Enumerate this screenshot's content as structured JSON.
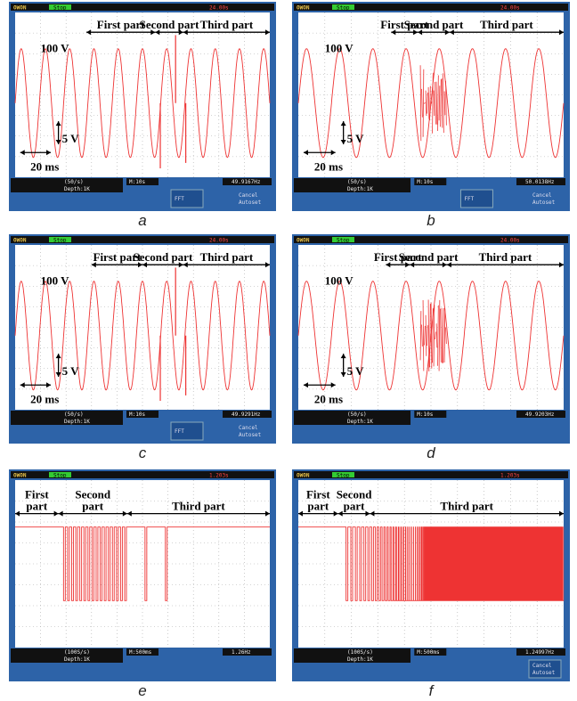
{
  "panels": [
    {
      "caption": "a",
      "first": "First part",
      "second": "Second part",
      "third": "Third part",
      "voltage": "100 V",
      "vdiv": "5 V",
      "time": "20 ms",
      "scope": {
        "brand": "OWON",
        "status": "Stop",
        "clock": "24.00s",
        "freq": "49.9167Hz",
        "timebase": "M:10s",
        "rate": "(50/s)",
        "depth": "Depth:1K",
        "menu": [
          "FFT",
          "Cancel",
          "Autoset"
        ]
      }
    },
    {
      "caption": "b",
      "first": "First part",
      "second": "Second part",
      "third": "Third part",
      "voltage": "100 V",
      "vdiv": "5 V",
      "time": "20 ms",
      "scope": {
        "brand": "OWON",
        "status": "Stop",
        "clock": "24.00s",
        "freq": "50.0138Hz",
        "timebase": "M:10s",
        "rate": "(50/s)",
        "depth": "Depth:1K",
        "menu": [
          "FFT",
          "Cancel",
          "Autoset"
        ]
      }
    },
    {
      "caption": "c",
      "first": "First part",
      "second": "Second part",
      "third": "Third part",
      "voltage": "100 V",
      "vdiv": "5 V",
      "time": "20 ms",
      "scope": {
        "brand": "OWON",
        "status": "Stop",
        "clock": "24.00s",
        "freq": "49.9291Hz",
        "timebase": "M:10s",
        "rate": "(50/s)",
        "depth": "Depth:1K",
        "menu": [
          "FFT",
          "Cancel",
          "Autoset"
        ]
      }
    },
    {
      "caption": "d",
      "first": "First part",
      "second": "Second part",
      "third": "Third part",
      "voltage": "100 V",
      "vdiv": "5 V",
      "time": "20 ms",
      "scope": {
        "brand": "OWON",
        "status": "Stop",
        "clock": "24.00s",
        "freq": "49.9203Hz",
        "timebase": "M:10s",
        "rate": "(50/s)",
        "depth": "Depth:1K",
        "menu": []
      }
    },
    {
      "caption": "e",
      "first": "First part",
      "second": "Second part",
      "third": "Third part",
      "scope": {
        "brand": "OWON",
        "status": "Stop",
        "clock": "1.203s",
        "freq": "1.26Hz",
        "timebase": "M:500ms",
        "rate": "(100S/s)",
        "depth": "Depth:1K",
        "menu": []
      }
    },
    {
      "caption": "f",
      "first": "First part",
      "second": "Second part",
      "third": "Third part",
      "scope": {
        "brand": "OWON",
        "status": "Stop",
        "clock": "1.203s",
        "freq": "1.24997Hz",
        "timebase": "M:500ms",
        "rate": "(100S/s)",
        "depth": "Depth:1K",
        "menu": [
          "Cancel",
          "Autoset"
        ]
      }
    }
  ]
}
